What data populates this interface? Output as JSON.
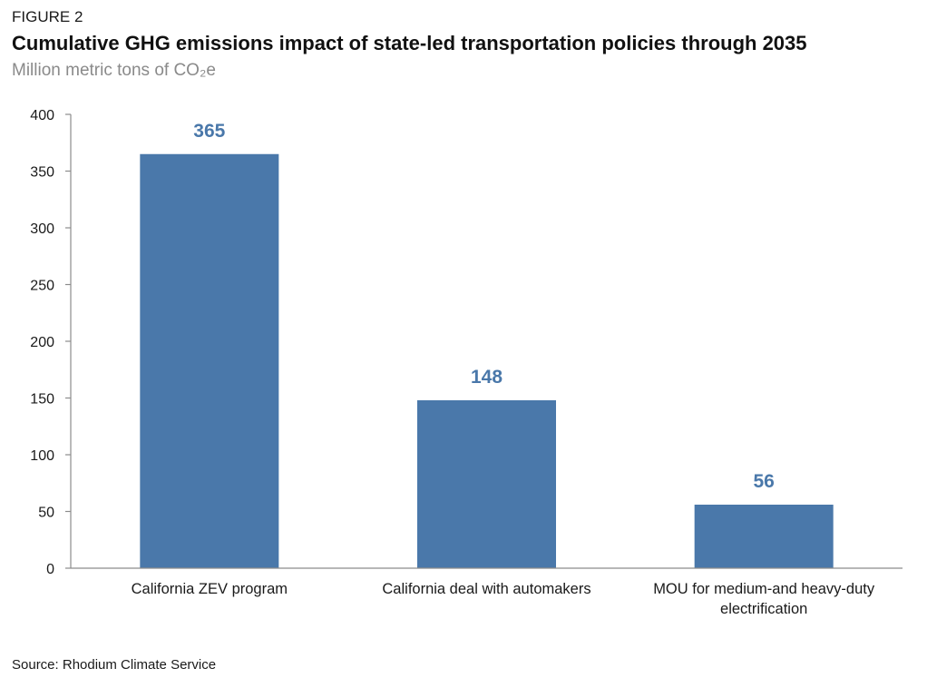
{
  "figure_label": "FIGURE 2",
  "source": "Source: Rhodium Climate Service",
  "colors": {
    "bar": "#4a78aa",
    "axis": "#8c8c8c"
  },
  "chart_data": {
    "type": "bar",
    "title": "Cumulative GHG emissions impact of state-led transportation policies through 2035",
    "subtitle": "Million metric tons of CO₂e",
    "xlabel": "",
    "ylabel": "",
    "categories": [
      [
        "California ZEV program"
      ],
      [
        "California deal with automakers"
      ],
      [
        "MOU for medium-and heavy-duty",
        "electrification"
      ]
    ],
    "values": [
      365,
      148,
      56
    ],
    "data_labels": [
      "365",
      "148",
      "56"
    ],
    "yticks": [
      0,
      50,
      100,
      150,
      200,
      250,
      300,
      350,
      400
    ],
    "ylim": [
      0,
      400
    ],
    "grid": false,
    "legend": "none"
  }
}
